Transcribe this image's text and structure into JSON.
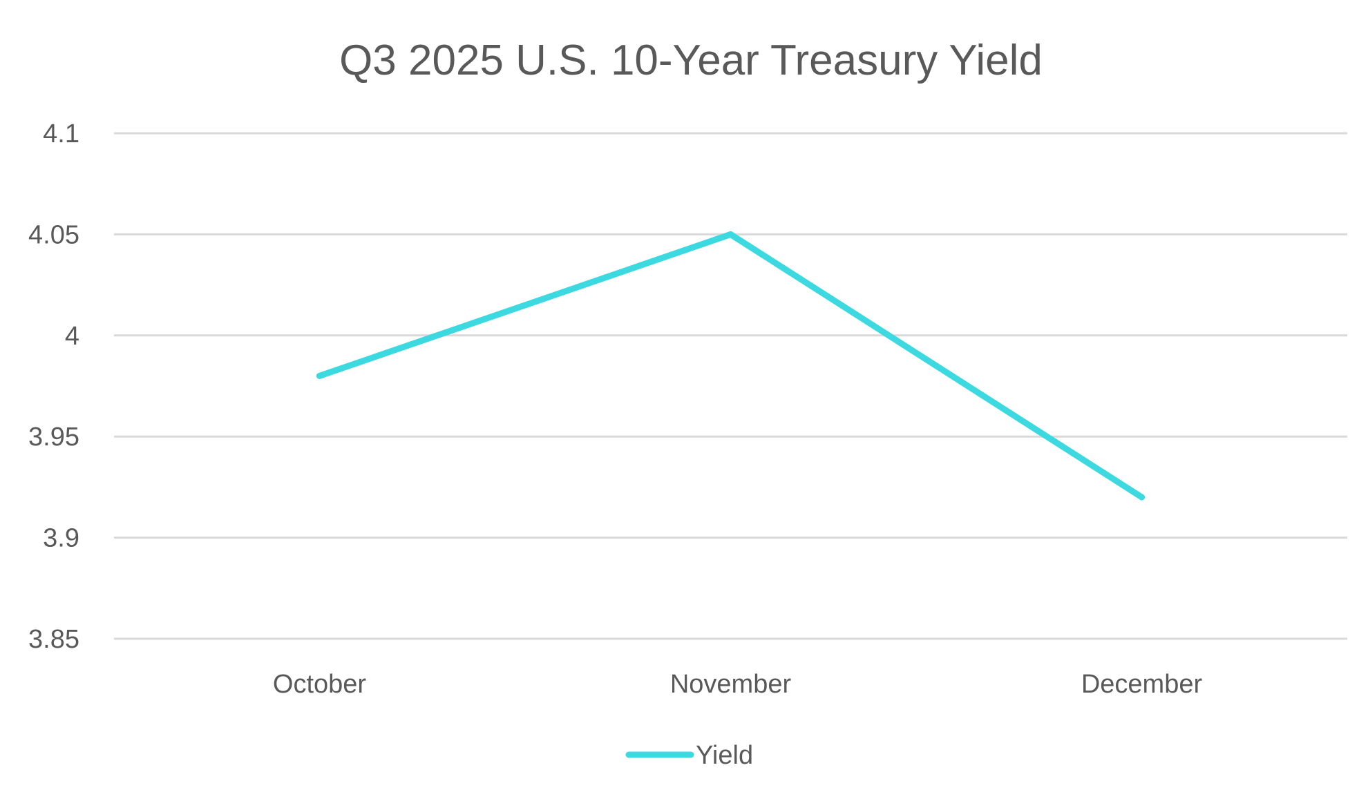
{
  "colors": {
    "background": "#ffffff",
    "series": "#3dd9e0",
    "grid": "#d9d9d9",
    "text": "#595959"
  },
  "chart_data": {
    "type": "line",
    "title": "Q3 2025 U.S. 10-Year Treasury Yield",
    "xlabel": "",
    "ylabel": "",
    "categories": [
      "October",
      "November",
      "December"
    ],
    "series": [
      {
        "name": "Yield",
        "values": [
          3.98,
          4.05,
          3.92
        ]
      }
    ],
    "ylim": [
      3.85,
      4.1
    ],
    "yticks": [
      "3.85",
      "3.9",
      "3.95",
      "4",
      "4.05",
      "4.1"
    ],
    "grid": true,
    "legend_position": "bottom-center"
  }
}
